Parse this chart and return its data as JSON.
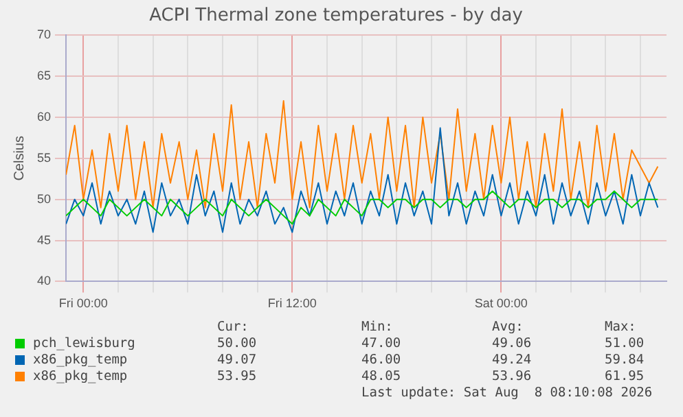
{
  "chart_data": {
    "type": "line",
    "title": "ACPI Thermal zone temperatures - by day",
    "ylabel": "Celsius",
    "x": [
      "2026-08-06T23:00",
      "2026-08-06T23:30",
      "2026-08-07T00:00",
      "2026-08-07T00:30",
      "2026-08-07T01:00",
      "2026-08-07T01:30",
      "2026-08-07T02:00",
      "2026-08-07T02:30",
      "2026-08-07T03:00",
      "2026-08-07T03:30",
      "2026-08-07T04:00",
      "2026-08-07T04:30",
      "2026-08-07T05:00",
      "2026-08-07T05:30",
      "2026-08-07T06:00",
      "2026-08-07T06:30",
      "2026-08-07T07:00",
      "2026-08-07T07:30",
      "2026-08-07T08:00",
      "2026-08-07T08:30",
      "2026-08-07T09:00",
      "2026-08-07T09:30",
      "2026-08-07T10:00",
      "2026-08-07T10:30",
      "2026-08-07T11:00",
      "2026-08-07T11:30",
      "2026-08-07T12:00",
      "2026-08-07T12:30",
      "2026-08-07T13:00",
      "2026-08-07T13:30",
      "2026-08-07T14:00",
      "2026-08-07T14:30",
      "2026-08-07T15:00",
      "2026-08-07T15:30",
      "2026-08-07T16:00",
      "2026-08-07T16:30",
      "2026-08-07T17:00",
      "2026-08-07T17:30",
      "2026-08-07T18:00",
      "2026-08-07T18:30",
      "2026-08-07T19:00",
      "2026-08-07T19:30",
      "2026-08-07T20:00",
      "2026-08-07T20:30",
      "2026-08-07T21:00",
      "2026-08-07T21:30",
      "2026-08-07T22:00",
      "2026-08-07T22:30",
      "2026-08-07T23:00",
      "2026-08-07T23:30",
      "2026-08-08T00:00",
      "2026-08-08T00:30",
      "2026-08-08T01:00",
      "2026-08-08T01:30",
      "2026-08-08T02:00",
      "2026-08-08T02:30",
      "2026-08-08T03:00",
      "2026-08-08T03:30",
      "2026-08-08T04:00",
      "2026-08-08T04:30",
      "2026-08-08T05:00",
      "2026-08-08T05:30",
      "2026-08-08T06:00",
      "2026-08-08T06:30",
      "2026-08-08T07:00",
      "2026-08-08T07:30",
      "2026-08-08T08:00",
      "2026-08-08T08:30",
      "2026-08-08T09:00"
    ],
    "series": [
      {
        "name": "pch_lewisburg",
        "color": "#00cc00",
        "values": [
          48,
          49,
          50,
          49,
          48,
          50,
          49,
          48,
          49,
          50,
          49,
          48,
          50,
          49,
          48,
          49,
          50,
          49,
          48,
          50,
          49,
          48,
          49,
          50,
          49,
          48,
          47,
          49,
          48,
          50,
          49,
          48,
          50,
          49,
          48,
          50,
          50,
          49,
          50,
          50,
          49,
          50,
          50,
          49,
          50,
          50,
          49,
          50,
          50,
          51,
          50,
          49,
          50,
          50,
          49,
          50,
          50,
          49,
          50,
          50,
          49,
          50,
          50,
          51,
          50,
          49,
          50,
          50,
          50
        ]
      },
      {
        "name": "x86_pkg_temp",
        "color": "#0066b3",
        "values": [
          47,
          50,
          48,
          52,
          47,
          51,
          48,
          50,
          47,
          51,
          46,
          52,
          48,
          50,
          47,
          53,
          48,
          51,
          46,
          52,
          47,
          50,
          48,
          51,
          47,
          49,
          46,
          51,
          48,
          52,
          47,
          51,
          48,
          52,
          47,
          51,
          48,
          53,
          47,
          52,
          48,
          51,
          47,
          58.7,
          48,
          52,
          47,
          51,
          48,
          53,
          48,
          52,
          47,
          51,
          48,
          53,
          47,
          52,
          48,
          51,
          47,
          52,
          48,
          51,
          47,
          53,
          48,
          52,
          49
        ]
      },
      {
        "name": "x86_pkg_temp",
        "color": "#ff8000",
        "values": [
          53,
          59,
          50,
          56,
          49,
          58,
          51,
          59,
          50,
          57,
          49,
          58,
          52,
          57,
          50,
          56,
          49,
          58,
          51,
          61.5,
          50,
          57,
          49,
          58,
          52,
          62,
          50,
          57,
          49,
          59,
          51,
          58,
          50,
          59,
          52,
          58,
          50,
          60,
          51,
          59,
          49,
          60,
          52,
          58,
          50,
          61,
          51,
          58,
          50,
          59,
          52,
          60,
          50,
          57,
          49,
          58,
          51,
          61,
          50,
          57,
          49,
          59,
          51,
          58,
          50,
          56,
          54,
          52,
          54
        ]
      }
    ],
    "xlim": [
      "2026-08-06T23:00",
      "2026-08-08T09:30"
    ],
    "xticks": [
      {
        "value": "2026-08-07T00:00",
        "label": "Fri 00:00"
      },
      {
        "value": "2026-08-07T02:00",
        "label": null
      },
      {
        "value": "2026-08-07T04:00",
        "label": null
      },
      {
        "value": "2026-08-07T06:00",
        "label": null
      },
      {
        "value": "2026-08-07T08:00",
        "label": null
      },
      {
        "value": "2026-08-07T10:00",
        "label": null
      },
      {
        "value": "2026-08-07T12:00",
        "label": "Fri 12:00"
      },
      {
        "value": "2026-08-07T14:00",
        "label": null
      },
      {
        "value": "2026-08-07T16:00",
        "label": null
      },
      {
        "value": "2026-08-07T18:00",
        "label": null
      },
      {
        "value": "2026-08-07T20:00",
        "label": null
      },
      {
        "value": "2026-08-07T22:00",
        "label": null
      },
      {
        "value": "2026-08-08T00:00",
        "label": "Sat 00:00"
      },
      {
        "value": "2026-08-08T02:00",
        "label": null
      },
      {
        "value": "2026-08-08T04:00",
        "label": null
      },
      {
        "value": "2026-08-08T06:00",
        "label": null
      },
      {
        "value": "2026-08-08T08:00",
        "label": null
      }
    ],
    "ylim": [
      40,
      70
    ],
    "yticks": [
      40,
      45,
      50,
      55,
      60,
      65,
      70
    ],
    "grid": true,
    "legend": "bottom",
    "marker": "none",
    "line_style": "solid",
    "annotations": [
      "Cur:",
      "Min:",
      "Avg:",
      "Max:",
      "50.00",
      "47.00",
      "49.06",
      "51.00",
      "49.07",
      "46.00",
      "49.24",
      "59.84",
      "53.95",
      "48.05",
      "53.96",
      "61.95",
      "Last update: Sat Aug  8 08:10:08 2026"
    ]
  }
}
